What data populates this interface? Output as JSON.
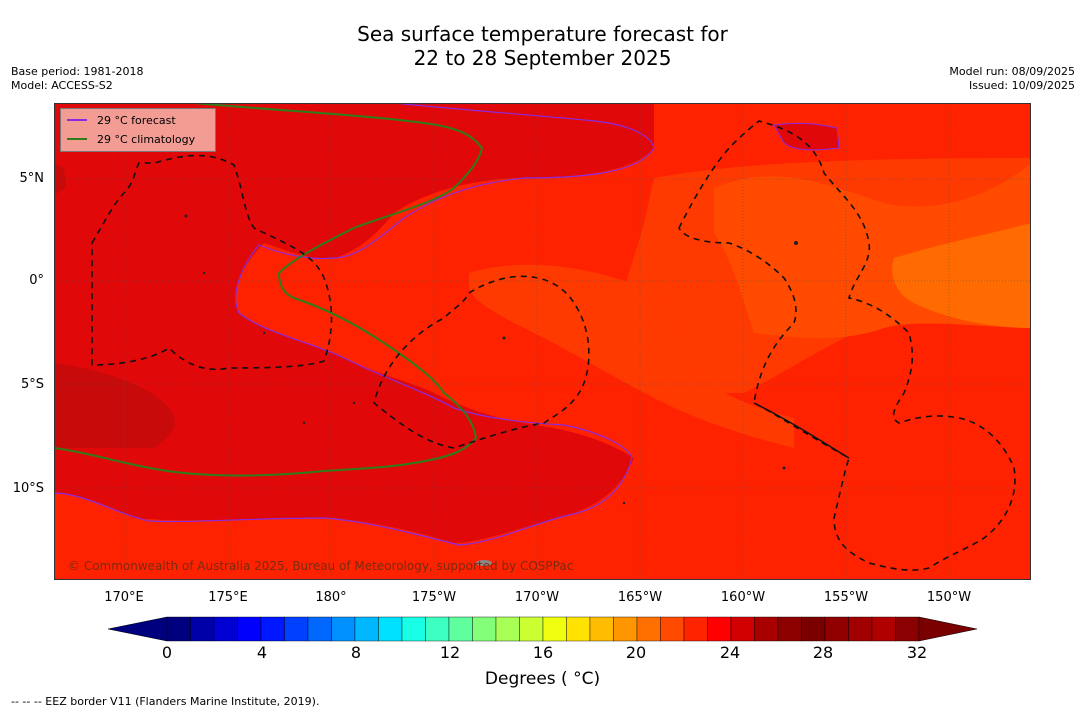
{
  "title_line1": "Sea surface temperature forecast for",
  "title_line2": "22 to 28 September 2025",
  "meta_left": {
    "base_period": "Base period: 1981-2018",
    "model": "Model: ACCESS-S2"
  },
  "meta_right": {
    "model_run": "Model run: 08/09/2025",
    "issued": "Issued: 10/09/2025"
  },
  "legend": {
    "forecast_label": "29 °C  forecast",
    "climatology_label": "29 °C  climatology",
    "forecast_color": "#8a2be2",
    "climatology_color": "#2e7d1a"
  },
  "lon_labels": [
    "170°E",
    "175°E",
    "180°",
    "175°W",
    "170°W",
    "165°W",
    "160°W",
    "155°W",
    "150°W"
  ],
  "lat_labels": [
    "5°N",
    "0°",
    "5°S",
    "10°S"
  ],
  "colorbar": {
    "ticks": [
      "0",
      "4",
      "8",
      "12",
      "16",
      "20",
      "24",
      "28",
      "32"
    ],
    "range": [
      0,
      32
    ],
    "step": 1,
    "title": "Degrees ( °C)",
    "colors": [
      "#00007f",
      "#0000a8",
      "#0000d2",
      "#0000fc",
      "#0018ff",
      "#0040ff",
      "#0068ff",
      "#0090ff",
      "#00b8ff",
      "#00e0ff",
      "#18ffe6",
      "#3cffc2",
      "#60ff9e",
      "#84ff7a",
      "#a8ff56",
      "#ccff32",
      "#f0ff0e",
      "#ffe200",
      "#ffbc00",
      "#ff9600",
      "#ff7000",
      "#ff4a00",
      "#ff2400",
      "#ff0000",
      "#d20000",
      "#a80000",
      "#8c0000",
      "#7a0000",
      "#900000",
      "#a00000",
      "#b00000",
      "#8b0000"
    ],
    "under_color": "#00007f",
    "over_color": "#7a0000"
  },
  "map_colors": {
    "band_27_28": "#ff6b00",
    "band_28_28_5": "#ff3a00",
    "band_28_5_29": "#ff2200",
    "band_29_30": "#e00808",
    "band_30_plus": "#c80a0a"
  },
  "eez_note": "--  --  -- EEZ border V11 (Flanders Marine Institute, 2019).",
  "copyright": "© Commonwealth of Australia 2025, Bureau of Meteorology, supported by COSPPac"
}
